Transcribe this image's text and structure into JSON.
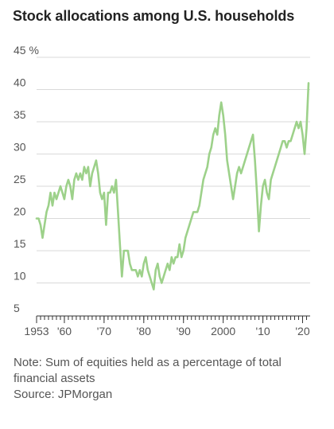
{
  "chart_data": {
    "type": "line",
    "title": "Stock allocations among U.S. households",
    "ylabel": "",
    "xlabel": "",
    "y_unit": "%",
    "ylim": [
      5,
      45
    ],
    "y_ticks": [
      5,
      10,
      15,
      20,
      25,
      30,
      35,
      40,
      45
    ],
    "y_tick_labels": [
      "5",
      "10",
      "15",
      "20",
      "25",
      "30",
      "35",
      "40",
      "45 %"
    ],
    "xlim": [
      1953,
      2021.5
    ],
    "x_ticks": [
      1953,
      1960,
      1970,
      1980,
      1990,
      2000,
      2010,
      2020
    ],
    "x_tick_labels": [
      "1953",
      "'60",
      "'70",
      "'80",
      "'90",
      "2000",
      "'10",
      "'20"
    ],
    "grid": "horizontal",
    "color": "#9dd18a",
    "series": [
      {
        "x": [
          1953.0,
          1953.5,
          1954.0,
          1954.5,
          1955.0,
          1955.5,
          1956.0,
          1956.5,
          1957.0,
          1957.5,
          1958.0,
          1958.5,
          1959.0,
          1959.5,
          1960.0,
          1960.5,
          1961.0,
          1961.5,
          1962.0,
          1962.5,
          1963.0,
          1963.5,
          1964.0,
          1964.5,
          1965.0,
          1965.5,
          1966.0,
          1966.5,
          1967.0,
          1967.5,
          1968.0,
          1968.5,
          1969.0,
          1969.5,
          1970.0,
          1970.5,
          1971.0,
          1971.5,
          1972.0,
          1972.5,
          1973.0,
          1973.5,
          1974.0,
          1974.5,
          1975.0,
          1975.5,
          1976.0,
          1976.5,
          1977.0,
          1977.5,
          1978.0,
          1978.5,
          1979.0,
          1979.5,
          1980.0,
          1980.5,
          1981.0,
          1981.5,
          1982.0,
          1982.5,
          1983.0,
          1983.5,
          1984.0,
          1984.5,
          1985.0,
          1985.5,
          1986.0,
          1986.5,
          1987.0,
          1987.5,
          1988.0,
          1988.5,
          1989.0,
          1989.5,
          1990.0,
          1990.5,
          1991.0,
          1991.5,
          1992.0,
          1992.5,
          1993.0,
          1993.5,
          1994.0,
          1994.5,
          1995.0,
          1995.5,
          1996.0,
          1996.5,
          1997.0,
          1997.5,
          1998.0,
          1998.5,
          1999.0,
          1999.5,
          2000.0,
          2000.5,
          2001.0,
          2001.5,
          2002.0,
          2002.5,
          2003.0,
          2003.5,
          2004.0,
          2004.5,
          2005.0,
          2005.5,
          2006.0,
          2006.5,
          2007.0,
          2007.5,
          2008.0,
          2008.5,
          2009.0,
          2009.5,
          2010.0,
          2010.5,
          2011.0,
          2011.5,
          2012.0,
          2012.5,
          2013.0,
          2013.5,
          2014.0,
          2014.5,
          2015.0,
          2015.5,
          2016.0,
          2016.5,
          2017.0,
          2017.5,
          2018.0,
          2018.5,
          2019.0,
          2019.5,
          2020.0,
          2020.5,
          2021.0,
          2021.5
        ],
        "y": [
          20,
          20,
          19,
          17,
          19,
          21,
          22,
          24,
          22,
          24,
          23,
          24,
          25,
          24,
          23,
          25,
          26,
          25,
          23,
          26,
          27,
          26,
          27,
          26,
          28,
          27,
          28,
          25,
          27,
          28,
          29,
          27,
          24,
          23,
          24,
          19,
          24,
          24,
          25,
          24,
          26,
          21,
          16,
          11,
          15,
          15,
          15,
          13,
          12,
          12,
          12,
          11,
          12,
          11,
          13,
          14,
          12,
          11,
          10,
          9,
          12,
          13,
          11,
          10,
          11,
          12,
          13,
          12,
          14,
          13,
          14,
          14,
          16,
          14,
          15,
          17,
          18,
          19,
          20,
          21,
          21,
          21,
          22,
          24,
          26,
          27,
          28,
          30,
          31,
          33,
          34,
          33,
          36,
          38,
          36,
          33,
          29,
          27,
          25,
          23,
          25,
          27,
          28,
          27,
          28,
          29,
          30,
          31,
          32,
          33,
          29,
          24,
          18,
          22,
          25,
          26,
          24,
          23,
          26,
          27,
          28,
          29,
          30,
          31,
          32,
          32,
          31,
          32,
          32,
          33,
          34,
          35,
          34,
          35,
          33,
          30,
          34,
          41
        ]
      }
    ]
  },
  "note": {
    "note_text": "Note: Sum of equities held as a percentage of total financial assets",
    "source_text": "Source: JPMorgan"
  }
}
